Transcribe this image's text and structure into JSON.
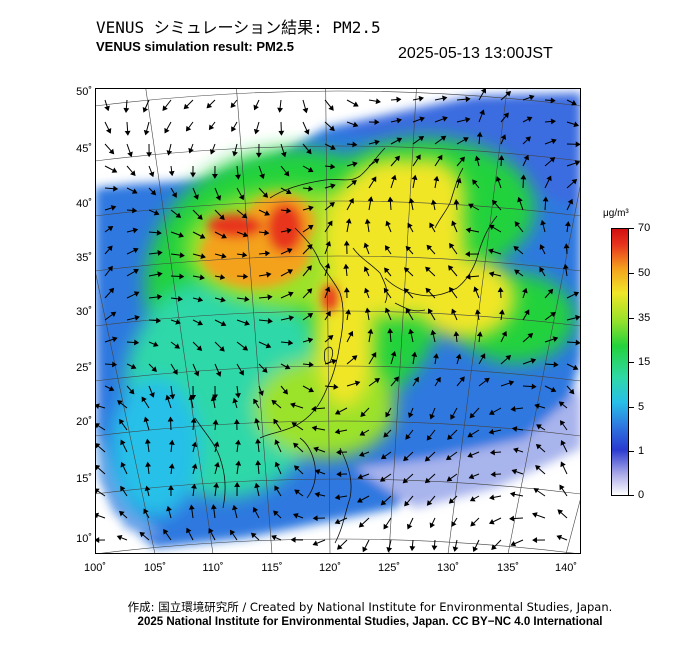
{
  "header": {
    "title_jp": "VENUS シミュレーション結果: PM2.5",
    "title_en": "VENUS simulation result: PM2.5",
    "timestamp": "2025-05-13 13:00JST"
  },
  "map": {
    "lat_ticks": [
      "50˚",
      "45˚",
      "40˚",
      "35˚",
      "30˚",
      "25˚",
      "20˚",
      "15˚",
      "10˚"
    ],
    "lon_ticks": [
      "100˚",
      "105˚",
      "110˚",
      "115˚",
      "120˚",
      "125˚",
      "130˚",
      "135˚",
      "140˚"
    ],
    "layers": [
      "pm25-concentration",
      "wind-vectors",
      "coastlines",
      "graticule"
    ]
  },
  "colorbar": {
    "unit": "μg/m³",
    "labels": [
      "70",
      "50",
      "35",
      "15",
      "5",
      "1",
      "0"
    ],
    "colors": [
      "#d01010",
      "#f4a21e",
      "#f0e628",
      "#24d23c",
      "#27c0e8",
      "#2a3ad0",
      "#ffffff"
    ]
  },
  "footer": {
    "credit_jp": "作成: 国立環境研究所 / Created by National Institute for Environmental Studies, Japan.",
    "credit_en": "2025 National Institute for Environmental Studies, Japan. CC BY−NC 4.0 International"
  }
}
